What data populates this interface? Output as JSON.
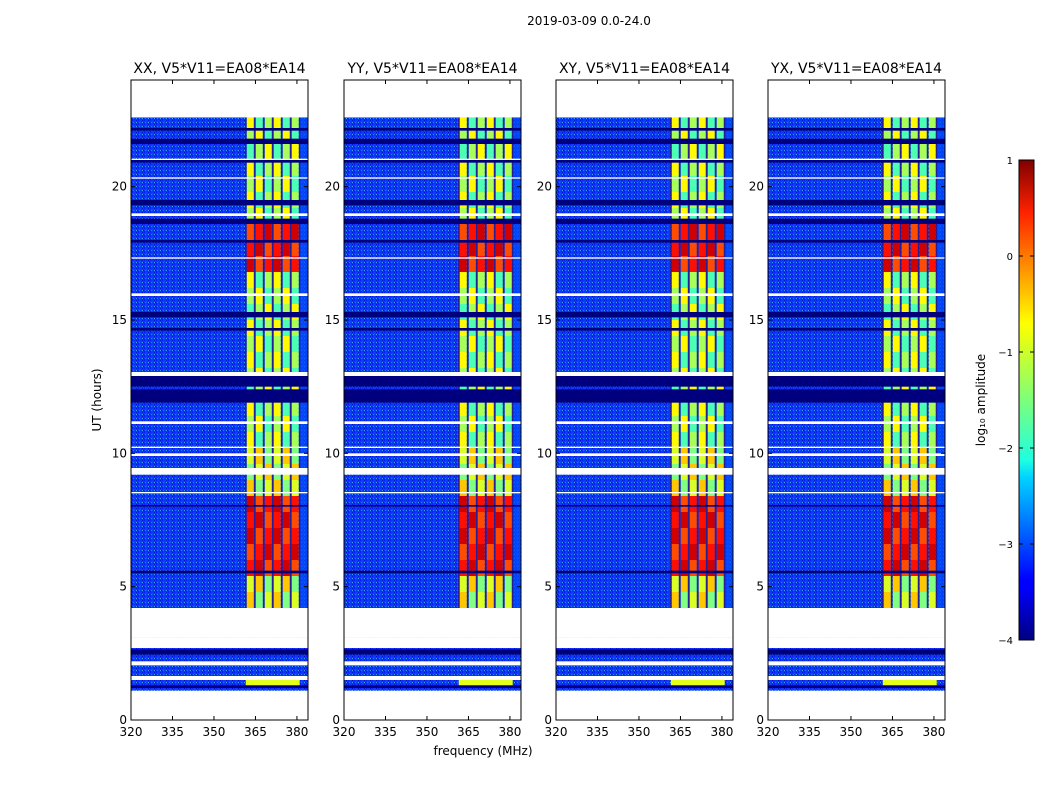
{
  "figure": {
    "suptitle": "2019-03-09 0.0-24.0",
    "xlabel": "frequency (MHz)",
    "ylabel": "UT (hours)",
    "colorbar_label": "log₁₀ amplitude"
  },
  "chart_data": {
    "type": "heatmap",
    "panels": [
      {
        "title": "XX, V5*V11=EA08*EA14",
        "mid_series": "xx"
      },
      {
        "title": "YY, V5*V11=EA08*EA14",
        "mid_series": "yy"
      },
      {
        "title": "XY, V5*V11=EA08*EA14",
        "mid_series": "xy"
      },
      {
        "title": "YX, V5*V11=EA08*EA14",
        "mid_series": "yx"
      }
    ],
    "x_range": [
      320,
      384
    ],
    "x_ticks": [
      320,
      335,
      350,
      365,
      380
    ],
    "y_range": [
      0,
      24
    ],
    "y_ticks": [
      0,
      5,
      10,
      15,
      20
    ],
    "colorbar": {
      "range": [
        -4,
        1
      ],
      "ticks": [
        1,
        0,
        -1,
        -2,
        -3,
        -4
      ],
      "colormap": "jet"
    },
    "data_coverage_hours": [
      [
        0.9,
        3.1
      ],
      [
        4.2,
        22.6
      ]
    ],
    "strong_signal_band_mhz": [
      361.5,
      381.0
    ],
    "weak_band_mhz": [
      381.0,
      384.0
    ],
    "gap_hours": [
      [
        0.9,
        1.1
      ],
      [
        1.5,
        1.65
      ],
      [
        2.05,
        2.2
      ],
      [
        2.7,
        3.1
      ],
      [
        3.1,
        4.2
      ],
      [
        8.5,
        8.55
      ],
      [
        9.2,
        9.45
      ],
      [
        9.9,
        10.0
      ],
      [
        10.2,
        10.25
      ],
      [
        11.1,
        11.2
      ],
      [
        12.9,
        13.05
      ],
      [
        15.9,
        16.0
      ],
      [
        17.3,
        17.35
      ],
      [
        18.9,
        19.0
      ],
      [
        20.3,
        20.35
      ],
      [
        21.0,
        21.05
      ],
      [
        22.6,
        24.0
      ]
    ],
    "flag_hours": [
      [
        1.2,
        1.3
      ],
      [
        2.45,
        2.65
      ],
      [
        5.5,
        5.6
      ],
      [
        8.0,
        8.06
      ],
      [
        11.9,
        12.4
      ],
      [
        12.5,
        12.9
      ],
      [
        14.6,
        14.7
      ],
      [
        15.1,
        15.3
      ],
      [
        17.9,
        18.0
      ],
      [
        18.6,
        18.8
      ],
      [
        19.3,
        19.5
      ],
      [
        20.9,
        21.0
      ],
      [
        21.6,
        21.8
      ],
      [
        22.1,
        22.2
      ]
    ],
    "peak_hours": [
      [
        5.6,
        7.8
      ],
      [
        17.0,
        18.3
      ]
    ]
  }
}
